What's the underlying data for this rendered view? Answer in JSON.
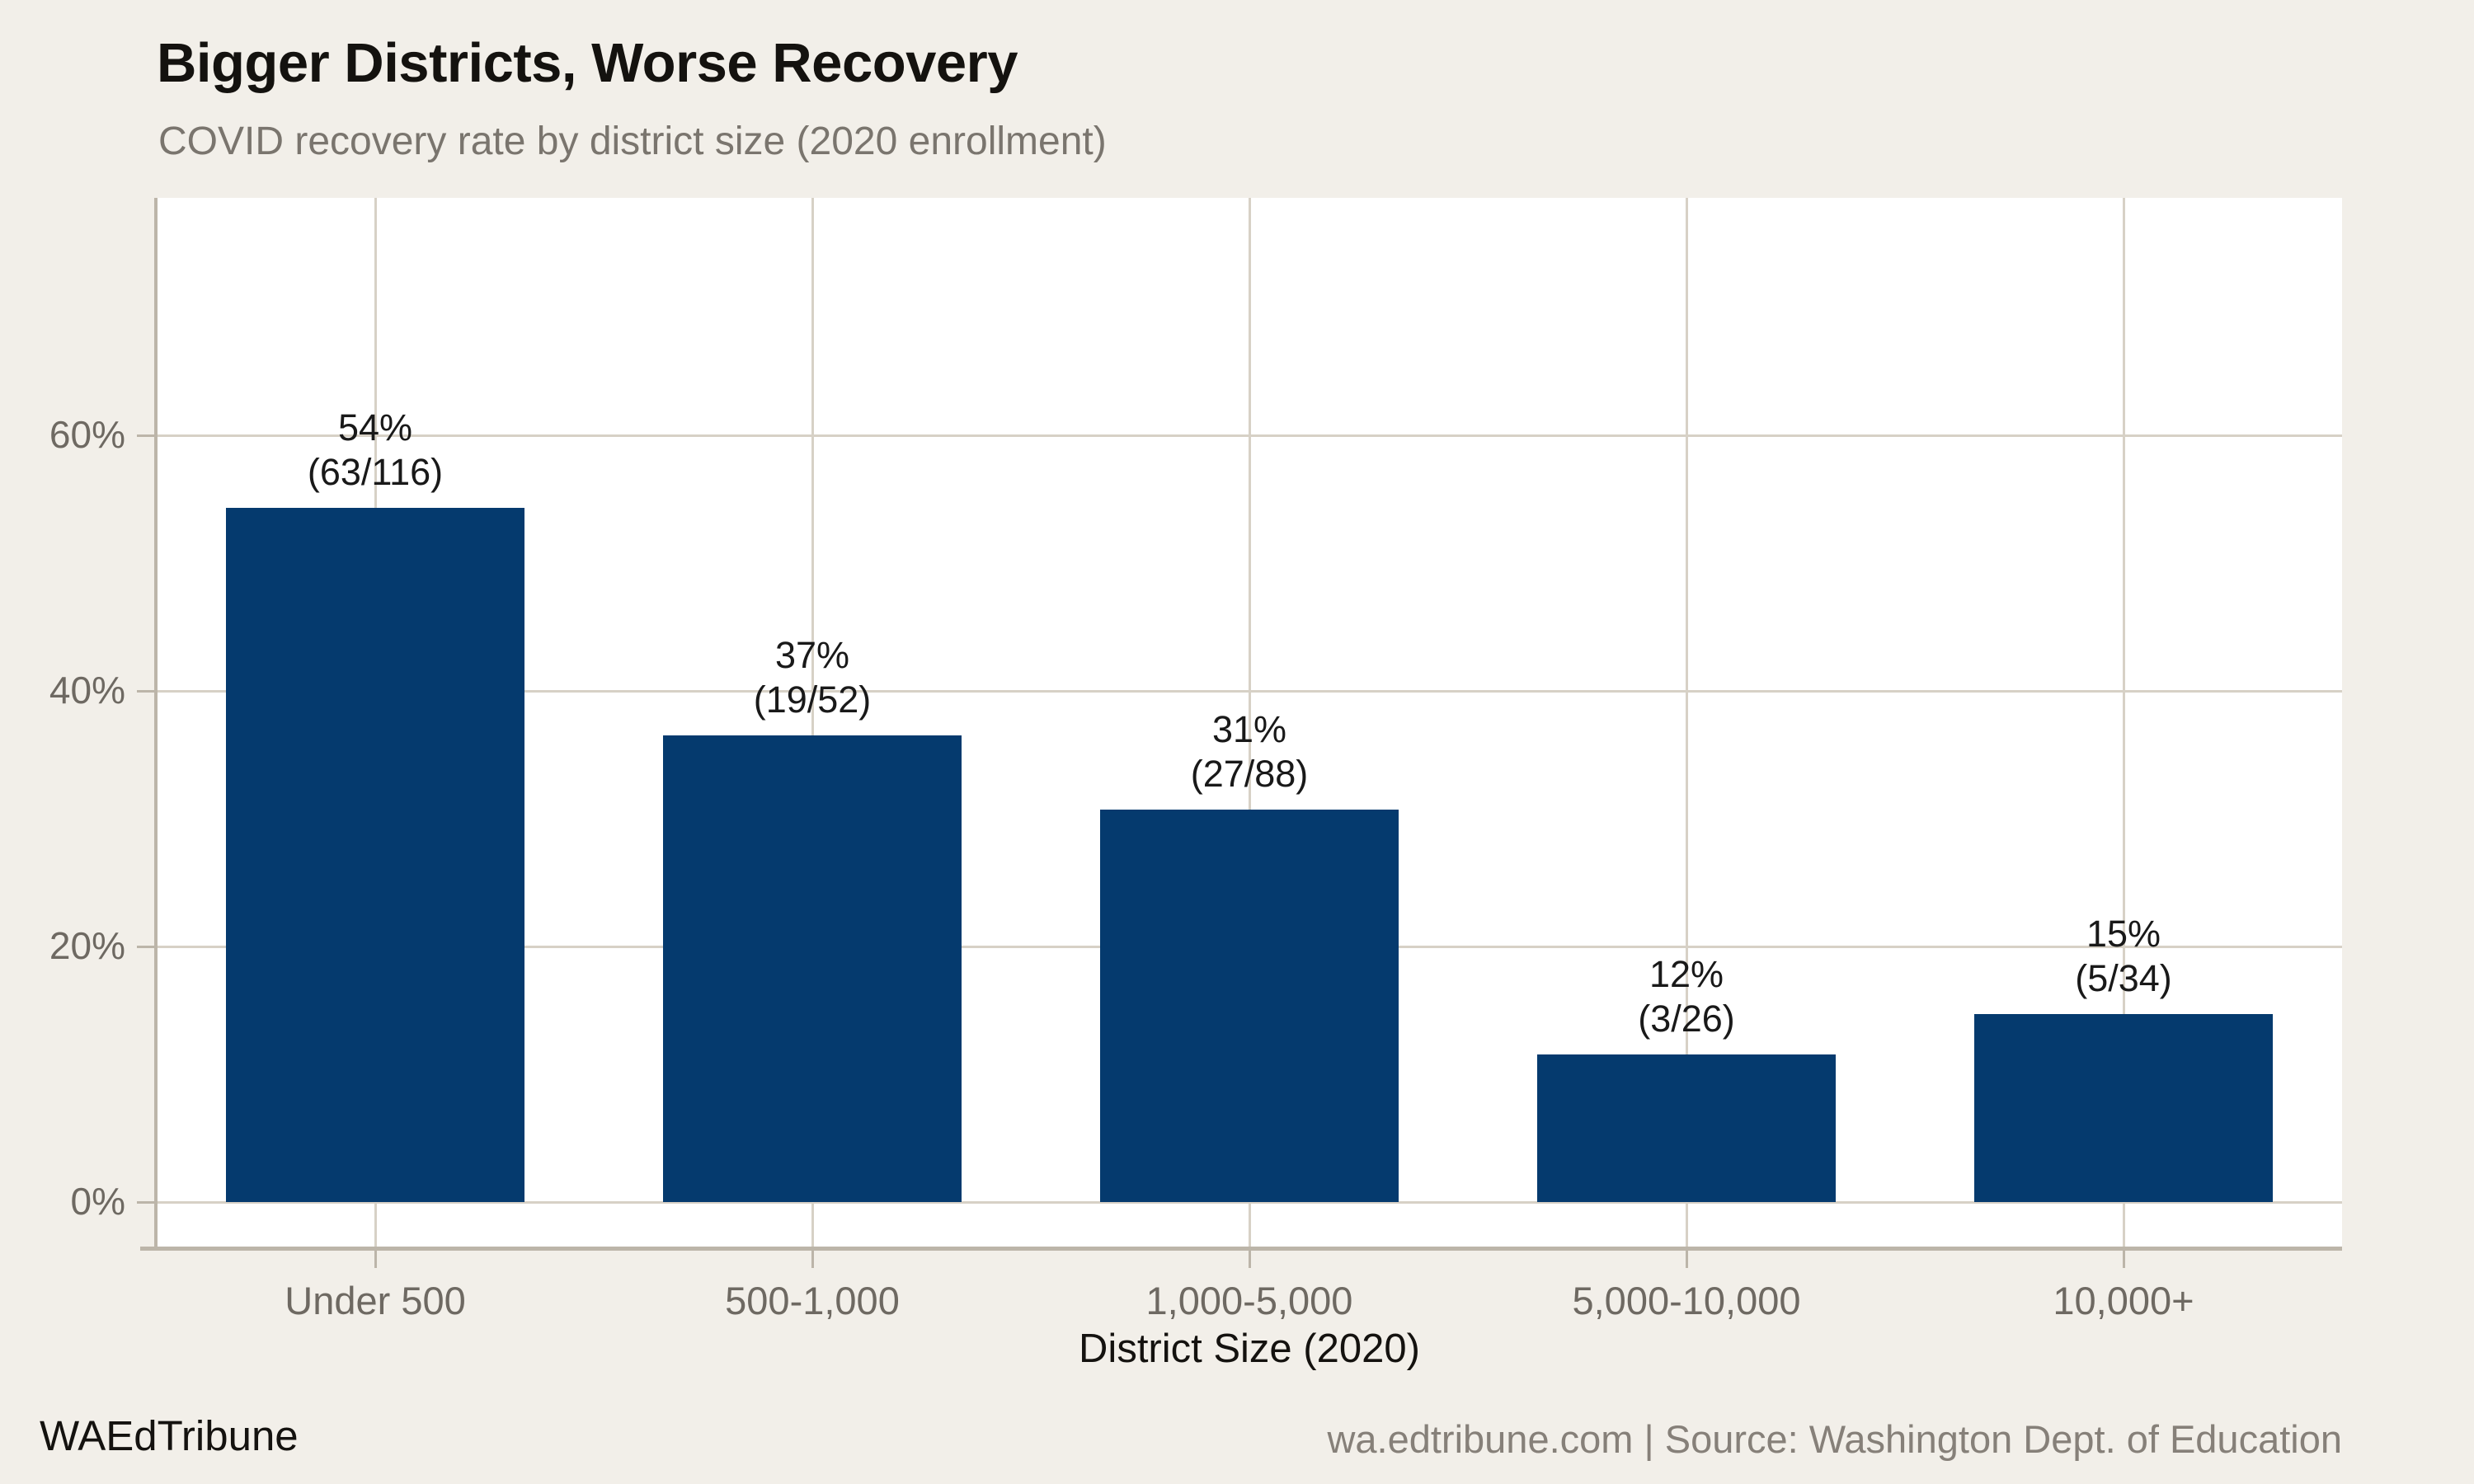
{
  "page": {
    "background_color": "#f2efe9"
  },
  "header": {
    "title": "Bigger Districts, Worse Recovery",
    "subtitle": "COVID recovery rate by district size (2020 enrollment)"
  },
  "footer": {
    "brand": "WAEdTribune",
    "attribution": "wa.edtribune.com | Source: Washington Dept. of Education"
  },
  "chart_data": {
    "type": "bar",
    "title": "Bigger Districts, Worse Recovery",
    "subtitle": "COVID recovery rate by district size (2020 enrollment)",
    "xlabel": "District Size (2020)",
    "ylabel": "",
    "categories": [
      "Under 500",
      "500-1,000",
      "1,000-5,000",
      "5,000-10,000",
      "10,000+"
    ],
    "values_percent": [
      54.3,
      36.5,
      30.7,
      11.5,
      14.7
    ],
    "bars": [
      {
        "category": "Under 500",
        "recovered": 63,
        "total": 116,
        "percent_label": "54%",
        "fraction_label": "(63/116)"
      },
      {
        "category": "500-1,000",
        "recovered": 19,
        "total": 52,
        "percent_label": "37%",
        "fraction_label": "(19/52)"
      },
      {
        "category": "1,000-5,000",
        "recovered": 27,
        "total": 88,
        "percent_label": "31%",
        "fraction_label": "(27/88)"
      },
      {
        "category": "5,000-10,000",
        "recovered": 3,
        "total": 26,
        "percent_label": "12%",
        "fraction_label": "(3/26)"
      },
      {
        "category": "10,000+",
        "recovered": 5,
        "total": 34,
        "percent_label": "15%",
        "fraction_label": "(5/34)"
      }
    ],
    "yticks": [
      {
        "value": 0,
        "label": "0%"
      },
      {
        "value": 20,
        "label": "20%"
      },
      {
        "value": 40,
        "label": "40%"
      },
      {
        "value": 60,
        "label": "60%"
      }
    ],
    "ylim": [
      0,
      78
    ],
    "grid": true,
    "legend": "none",
    "bar_color": "#053a6e"
  },
  "colors": {
    "background": "#f2efe9",
    "panel": "#ffffff",
    "bar": "#053a6e",
    "gridline": "#d7d1c6",
    "axis_line": "#bcb5a9",
    "tick_label": "#6e6962",
    "title": "#14120f",
    "subtitle": "#7a756e",
    "value_label": "#191919",
    "axis_title": "#14120f",
    "brand": "#14120f",
    "attribution": "#868079"
  }
}
